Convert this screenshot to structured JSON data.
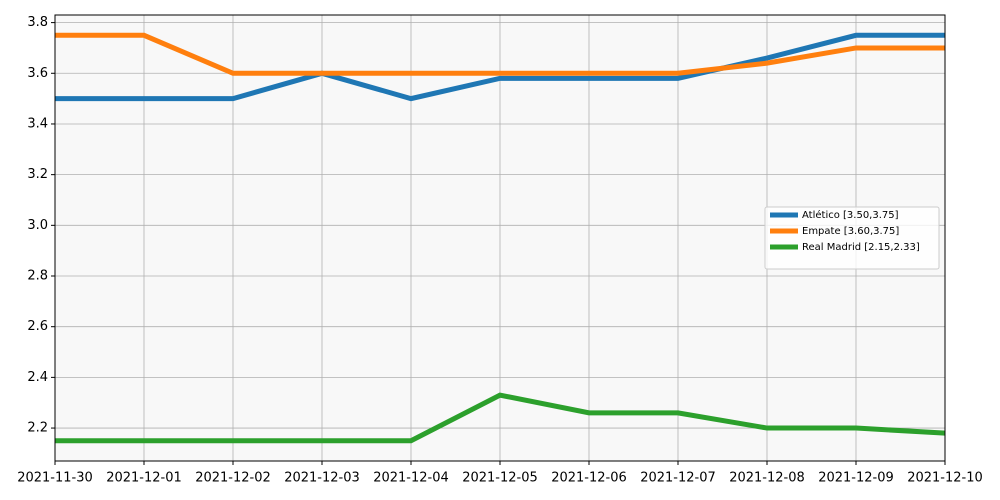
{
  "chart_data": {
    "type": "line",
    "x": [
      "2021-11-30",
      "2021-12-01",
      "2021-12-02",
      "2021-12-03",
      "2021-12-04",
      "2021-12-05",
      "2021-12-06",
      "2021-12-07",
      "2021-12-08",
      "2021-12-09",
      "2021-12-10"
    ],
    "xlim": [
      "2021-11-30",
      "2021-12-10"
    ],
    "xticks": [
      "2021-11-30",
      "2021-12-01",
      "2021-12-02",
      "2021-12-03",
      "2021-12-04",
      "2021-12-05",
      "2021-12-06",
      "2021-12-07",
      "2021-12-08",
      "2021-12-09",
      "2021-12-10"
    ],
    "ylim": [
      2.07,
      3.83
    ],
    "yticks": [
      2.2,
      2.4,
      2.6,
      2.8,
      {
        "value": 3,
        "label": "3.0"
      },
      3.2,
      3.4,
      3.6,
      3.8
    ],
    "grid": true,
    "legend": "center right",
    "series": [
      {
        "name": "Atlético [3.50,3.75]",
        "color": "#1f77b4",
        "values": [
          3.5,
          3.5,
          3.5,
          3.6,
          3.5,
          3.58,
          3.58,
          3.58,
          3.66,
          3.75,
          3.75
        ]
      },
      {
        "name": "Empate [3.60,3.75]",
        "color": "#ff7f0e",
        "values": [
          3.75,
          3.75,
          3.6,
          3.6,
          3.6,
          3.6,
          3.6,
          3.6,
          3.64,
          3.7,
          3.7
        ]
      },
      {
        "name": "Real Madrid [2.15,2.33]",
        "color": "#2ca02c",
        "values": [
          2.15,
          2.15,
          2.15,
          2.15,
          2.15,
          2.33,
          2.26,
          2.26,
          2.2,
          2.2,
          2.18
        ]
      }
    ]
  }
}
